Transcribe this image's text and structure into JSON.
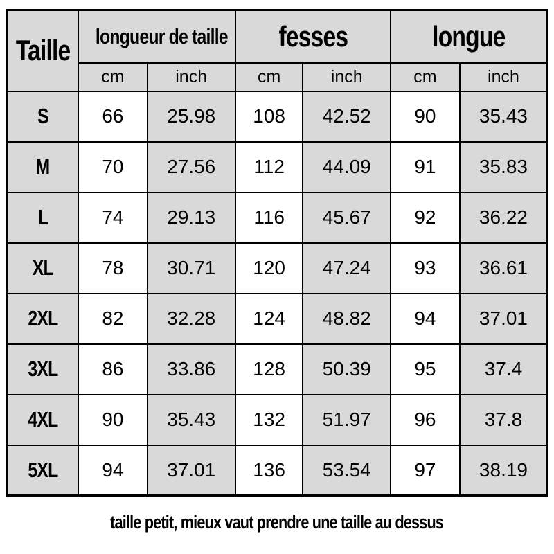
{
  "table": {
    "size_col_header": "Taille",
    "groups": [
      {
        "label": "longueur de taille"
      },
      {
        "label": "fesses"
      },
      {
        "label": "longue"
      }
    ],
    "unit_headers": [
      "cm",
      "inch",
      "cm",
      "inch",
      "cm",
      "inch"
    ],
    "rows": [
      {
        "size": "S",
        "values": [
          "66",
          "25.98",
          "108",
          "42.52",
          "90",
          "35.43"
        ]
      },
      {
        "size": "M",
        "values": [
          "70",
          "27.56",
          "112",
          "44.09",
          "91",
          "35.83"
        ]
      },
      {
        "size": "L",
        "values": [
          "74",
          "29.13",
          "116",
          "45.67",
          "92",
          "36.22"
        ]
      },
      {
        "size": "XL",
        "values": [
          "78",
          "30.71",
          "120",
          "47.24",
          "93",
          "36.61"
        ]
      },
      {
        "size": "2XL",
        "values": [
          "82",
          "32.28",
          "124",
          "48.82",
          "94",
          "37.01"
        ]
      },
      {
        "size": "3XL",
        "values": [
          "86",
          "33.86",
          "128",
          "50.39",
          "95",
          "37.4"
        ]
      },
      {
        "size": "4XL",
        "values": [
          "90",
          "35.43",
          "132",
          "51.97",
          "96",
          "37.8"
        ]
      },
      {
        "size": "5XL",
        "values": [
          "94",
          "37.01",
          "136",
          "53.54",
          "97",
          "38.19"
        ]
      }
    ],
    "footer_note": "taille petit, mieux vaut prendre une taille au dessus"
  },
  "colors": {
    "header_bg": "#d9d9d9",
    "shaded_cell_bg": "#d9d9d9",
    "white_cell_bg": "#ffffff",
    "border": "#000000",
    "text": "#000000",
    "page_bg": "#ffffff"
  }
}
